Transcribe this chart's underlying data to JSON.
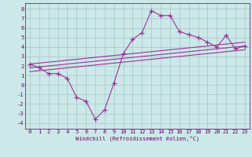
{
  "xlabel": "Windchill (Refroidissement éolien,°C)",
  "bg_color": "#cce8e8",
  "grid_color": "#aacccc",
  "line_color": "#993399",
  "x_ticks": [
    0,
    1,
    2,
    3,
    4,
    5,
    6,
    7,
    8,
    9,
    10,
    11,
    12,
    13,
    14,
    15,
    16,
    17,
    18,
    19,
    20,
    21,
    22,
    23
  ],
  "y_ticks": [
    -4,
    -3,
    -2,
    -1,
    0,
    1,
    2,
    3,
    4,
    5,
    6,
    7,
    8
  ],
  "xlim": [
    -0.5,
    23.5
  ],
  "ylim": [
    -4.6,
    8.6
  ],
  "main_series": {
    "x": [
      0,
      1,
      2,
      3,
      4,
      5,
      6,
      7,
      8,
      9,
      10,
      11,
      12,
      13,
      14,
      15,
      16,
      17,
      18,
      19,
      20,
      21,
      22,
      23
    ],
    "y": [
      2.2,
      1.8,
      1.2,
      1.2,
      0.7,
      -1.3,
      -1.7,
      -3.6,
      -2.6,
      0.2,
      3.3,
      4.8,
      5.5,
      7.8,
      7.3,
      7.3,
      5.6,
      5.3,
      5.0,
      4.5,
      4.0,
      5.2,
      3.8,
      4.1
    ]
  },
  "trend_lines": [
    {
      "x": [
        0,
        23
      ],
      "y": [
        2.2,
        4.5
      ]
    },
    {
      "x": [
        0,
        23
      ],
      "y": [
        1.8,
        4.1
      ]
    },
    {
      "x": [
        0,
        23
      ],
      "y": [
        1.4,
        3.7
      ]
    }
  ],
  "tick_fontsize": 5,
  "label_fontsize": 5,
  "label_color": "#660066",
  "tick_color": "#660066"
}
